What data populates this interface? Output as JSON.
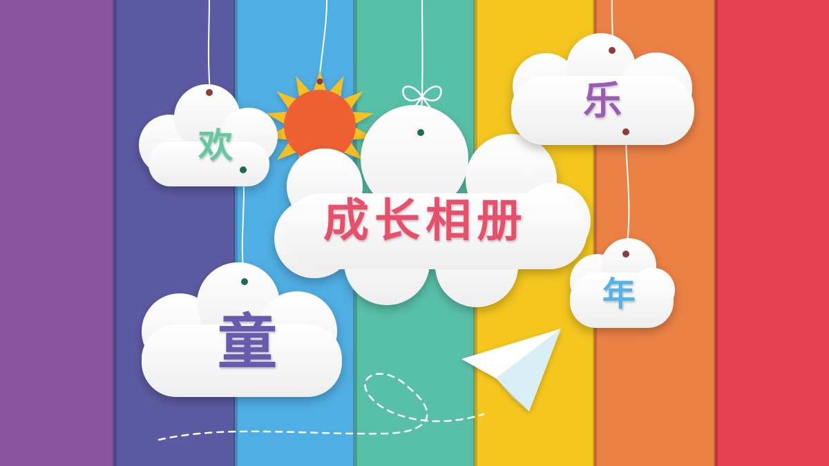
{
  "slide": {
    "title": "成长相册",
    "chars": {
      "huan": "欢",
      "le": "乐",
      "tong": "童",
      "nian": "年"
    }
  },
  "colors": {
    "stripes": [
      "#8a539f",
      "#5c5aa2",
      "#4faee3",
      "#58c0a8",
      "#f4c61e",
      "#ec8145",
      "#e43f52"
    ],
    "title": "#e8506a",
    "huan": "#62c8a2",
    "le": "#9a5cb4",
    "tong": "#6a5aad",
    "nian": "#55b4e6",
    "sun_core": "#ef6132",
    "sun_rays": "#f5c020",
    "cloud": "#ffffff",
    "string": "#ffffff",
    "hole": "#8b3a3a"
  },
  "decorations": {
    "sun": "sun-icon",
    "plane": "paper-plane-icon",
    "bow": "bow-icon"
  }
}
